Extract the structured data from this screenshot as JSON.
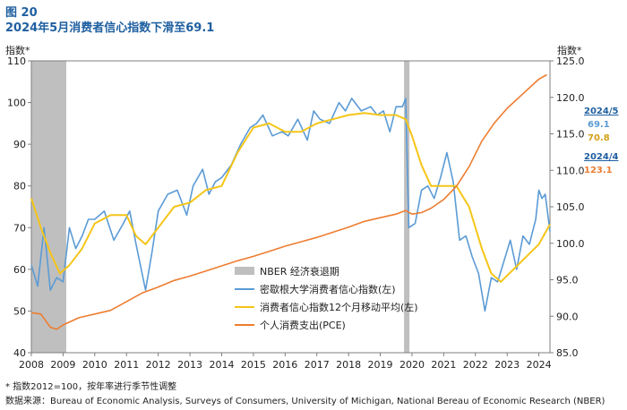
{
  "figure": {
    "number": "图 20",
    "title": "2024年5月消费者信心指数下滑至69.1",
    "left_unit": "指数*",
    "right_unit": "指数*"
  },
  "notes": {
    "footnote": "* 指数2012=100，按年率进行季节性调整",
    "source": "数据来源：Bureau of Economic Analysis, Surveys of Consumers, University of Michigan, National Bereau of Economic Research (NBER)"
  },
  "side_labels": {
    "date1": "2024/5",
    "sentiment_value": "69.1",
    "average_value": "70.8",
    "date2": "2024/4",
    "pce_value": "123.1"
  },
  "colors": {
    "sentiment": "#5b9bd5",
    "average": "#f5c518",
    "pce": "#ed7d31",
    "recession": "#bfbfbf",
    "title": "#1f5fa0"
  },
  "chart_data": {
    "type": "line",
    "x_ticks": [
      "2008",
      "2009",
      "2010",
      "2011",
      "2012",
      "2013",
      "2014",
      "2015",
      "2016",
      "2017",
      "2018",
      "2019",
      "2020",
      "2021",
      "2022",
      "2023",
      "2024"
    ],
    "y_left": {
      "lim": [
        40,
        110
      ],
      "ticks": [
        "40",
        "50",
        "60",
        "70",
        "80",
        "90",
        "100",
        "110"
      ]
    },
    "y_right": {
      "lim": [
        85,
        125
      ],
      "ticks": [
        "85.0",
        "90.0",
        "95.0",
        "100.0",
        "105.0",
        "110.0",
        "115.0",
        "120.0",
        "125.0"
      ]
    },
    "grid": false,
    "legend_position": "center",
    "legend": [
      {
        "key": "recession",
        "label": "NBER 经济衰退期"
      },
      {
        "key": "sentiment",
        "label": "密歇根大学消费者信心指数(左)"
      },
      {
        "key": "average",
        "label": "消费者信心指数12个月移动平均(左)"
      },
      {
        "key": "pce",
        "label": "个人消费支出(PCE)"
      }
    ],
    "recessions": [
      [
        2008.0,
        2009.1
      ],
      [
        2019.75,
        2019.92
      ]
    ],
    "series": [
      {
        "name": "密歇根大学消费者信心指数(左)",
        "axis": "left",
        "x": [
          2008.0,
          2008.2,
          2008.4,
          2008.6,
          2008.8,
          2009.0,
          2009.2,
          2009.4,
          2009.6,
          2009.8,
          2010.0,
          2010.3,
          2010.6,
          2010.9,
          2011.1,
          2011.3,
          2011.6,
          2011.8,
          2012.0,
          2012.3,
          2012.6,
          2012.9,
          2013.1,
          2013.4,
          2013.6,
          2013.8,
          2014.0,
          2014.3,
          2014.6,
          2014.9,
          2015.1,
          2015.3,
          2015.6,
          2015.9,
          2016.1,
          2016.4,
          2016.7,
          2016.9,
          2017.1,
          2017.4,
          2017.7,
          2017.9,
          2018.1,
          2018.4,
          2018.7,
          2018.9,
          2019.1,
          2019.3,
          2019.5,
          2019.7,
          2019.8,
          2019.9,
          2020.1,
          2020.3,
          2020.5,
          2020.7,
          2020.9,
          2021.1,
          2021.3,
          2021.5,
          2021.7,
          2021.9,
          2022.1,
          2022.3,
          2022.5,
          2022.7,
          2022.9,
          2023.1,
          2023.3,
          2023.5,
          2023.7,
          2023.9,
          2024.0,
          2024.1,
          2024.2,
          2024.35
        ],
        "values": [
          61,
          56,
          70,
          55,
          58,
          57,
          70,
          65,
          68,
          72,
          72,
          74,
          67,
          71,
          74,
          66,
          55,
          64,
          74,
          78,
          79,
          73,
          80,
          84,
          78,
          81,
          82,
          85,
          90,
          94,
          95,
          97,
          92,
          93,
          92,
          96,
          91,
          98,
          96,
          95,
          100,
          98,
          101,
          98,
          99,
          97,
          98,
          93,
          99,
          99,
          101,
          70,
          71,
          79,
          80,
          77,
          82,
          88,
          81,
          67,
          68,
          63,
          59,
          50,
          58,
          57,
          62,
          67,
          60,
          68,
          66,
          72,
          79,
          77,
          78,
          69.1
        ]
      },
      {
        "name": "消费者信心指数12个月移动平均(左)",
        "axis": "left",
        "x": [
          2008.0,
          2008.3,
          2008.6,
          2008.9,
          2009.2,
          2009.6,
          2010.0,
          2010.5,
          2011.0,
          2011.3,
          2011.6,
          2012.0,
          2012.5,
          2013.0,
          2013.5,
          2014.0,
          2014.5,
          2015.0,
          2015.5,
          2016.0,
          2016.5,
          2017.0,
          2017.5,
          2018.0,
          2018.5,
          2019.0,
          2019.5,
          2019.8,
          2020.0,
          2020.3,
          2020.6,
          2021.0,
          2021.4,
          2021.8,
          2022.2,
          2022.5,
          2022.8,
          2023.2,
          2023.6,
          2024.0,
          2024.35
        ],
        "values": [
          77,
          70,
          64,
          59,
          61,
          65,
          71,
          73,
          73,
          68,
          66,
          70,
          75,
          76,
          79,
          80,
          88,
          94,
          95,
          93,
          93,
          95,
          96,
          97,
          97.5,
          97,
          97,
          96,
          92,
          85,
          80,
          80,
          80,
          75,
          65,
          59,
          57,
          60,
          63,
          66,
          70.8
        ]
      },
      {
        "name": "个人消费支出(PCE)",
        "axis": "right",
        "x": [
          2008.0,
          2008.3,
          2008.6,
          2008.8,
          2009.0,
          2009.5,
          2010.0,
          2010.5,
          2011.0,
          2011.5,
          2012.0,
          2012.5,
          2013.0,
          2013.5,
          2014.0,
          2014.5,
          2015.0,
          2015.5,
          2016.0,
          2016.5,
          2017.0,
          2017.5,
          2018.0,
          2018.5,
          2019.0,
          2019.5,
          2019.8,
          2020.0,
          2020.3,
          2020.6,
          2021.0,
          2021.4,
          2021.8,
          2022.2,
          2022.6,
          2023.0,
          2023.5,
          2024.0,
          2024.25
        ],
        "values": [
          90.5,
          90.3,
          88.5,
          88.2,
          88.8,
          89.8,
          90.3,
          90.8,
          92.0,
          93.2,
          94.0,
          94.9,
          95.5,
          96.2,
          96.9,
          97.6,
          98.2,
          98.9,
          99.6,
          100.2,
          100.8,
          101.5,
          102.2,
          103.0,
          103.5,
          104.0,
          104.5,
          104.0,
          104.2,
          104.8,
          106.0,
          107.8,
          110.5,
          114.0,
          116.5,
          118.5,
          120.5,
          122.5,
          123.1
        ]
      }
    ]
  }
}
